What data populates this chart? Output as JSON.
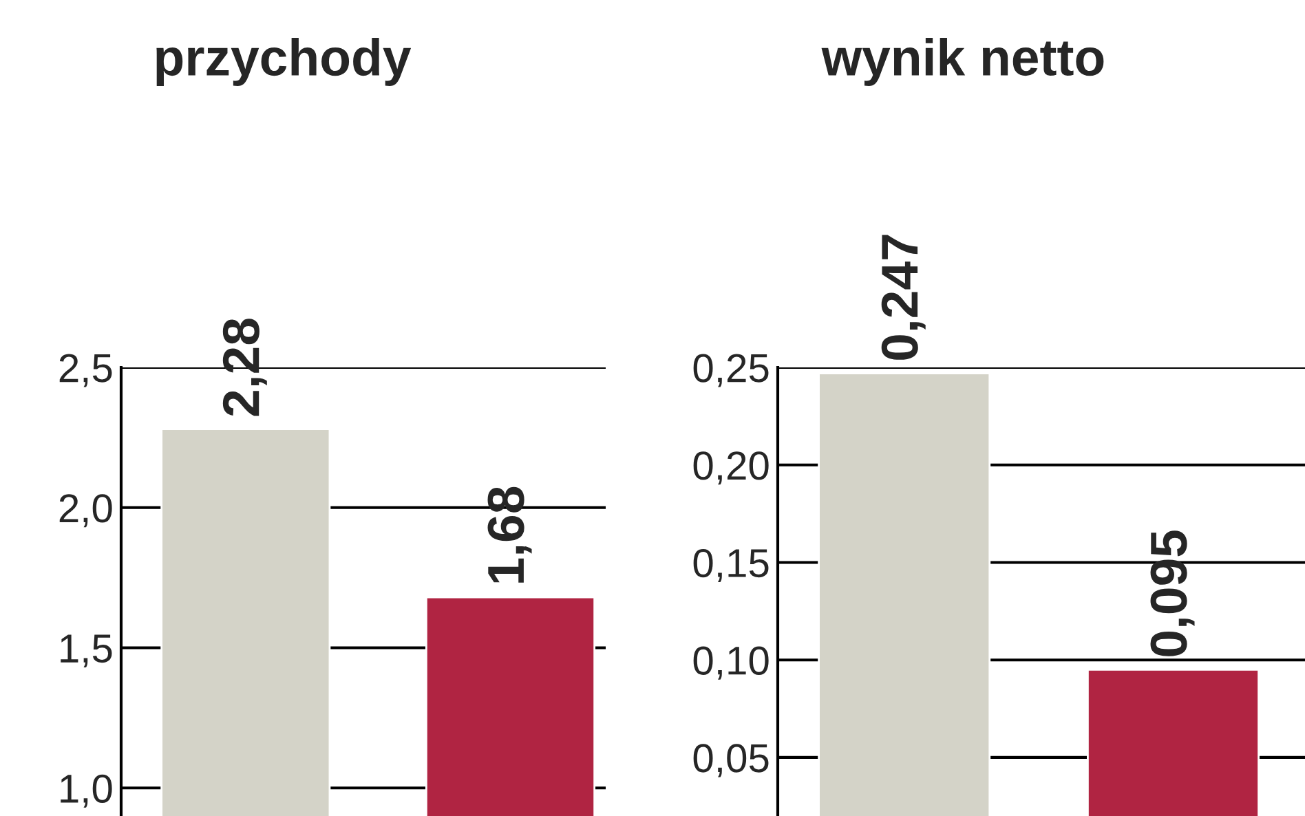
{
  "chart_data": [
    {
      "type": "bar",
      "title": "przychody",
      "categories": [
        null,
        null
      ],
      "values": [
        2.28,
        1.68
      ],
      "colors": [
        "#d4d3c8",
        "#b02442"
      ],
      "value_labels": [
        "2,28",
        "1,68"
      ],
      "ylim": [
        0.9,
        2.5
      ],
      "yticks": [
        {
          "value": 1.0,
          "label": "1,0"
        },
        {
          "value": 1.5,
          "label": "1,5"
        },
        {
          "value": 2.0,
          "label": "2,0"
        },
        {
          "value": 2.5,
          "label": "2,5"
        }
      ],
      "grid": "y"
    },
    {
      "type": "bar",
      "title": "wynik netto",
      "categories": [
        null,
        null
      ],
      "values": [
        0.247,
        0.095
      ],
      "colors": [
        "#d4d3c8",
        "#b02442"
      ],
      "value_labels": [
        "0,247",
        "0,095"
      ],
      "ylim": [
        0.02,
        0.25
      ],
      "yticks": [
        {
          "value": 0.05,
          "label": "0,05"
        },
        {
          "value": 0.1,
          "label": "0,10"
        },
        {
          "value": 0.15,
          "label": "0,15"
        },
        {
          "value": 0.2,
          "label": "0,20"
        },
        {
          "value": 0.25,
          "label": "0,25"
        }
      ],
      "grid": "y"
    }
  ]
}
